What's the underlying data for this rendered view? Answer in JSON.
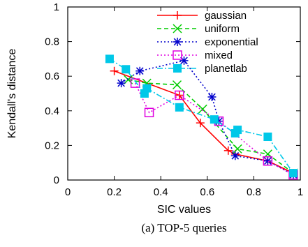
{
  "caption": "(a) TOP-5 queries",
  "chart_data": {
    "type": "line",
    "xlabel": "SIC values",
    "ylabel": "Kendall's distance",
    "xlim": [
      0,
      1
    ],
    "ylim": [
      0,
      1
    ],
    "x_ticks": [
      "0",
      "0.2",
      "0.4",
      "0.6",
      "0.8",
      "1"
    ],
    "y_ticks": [
      "0",
      "0.2",
      "0.4",
      "0.6",
      "0.8",
      "1"
    ],
    "legend_position": "top-right",
    "series": [
      {
        "name": "gaussian",
        "color": "#ff0000",
        "dash": "solid",
        "marker": "plus",
        "points": [
          [
            0.2,
            0.63
          ],
          [
            0.48,
            0.49
          ],
          [
            0.57,
            0.33
          ],
          [
            0.69,
            0.17
          ],
          [
            0.72,
            0.15
          ],
          [
            0.86,
            0.11
          ],
          [
            0.97,
            0.04
          ]
        ]
      },
      {
        "name": "uniform",
        "color": "#00cc00",
        "dash": "dashed",
        "marker": "x",
        "points": [
          [
            0.26,
            0.58
          ],
          [
            0.34,
            0.56
          ],
          [
            0.47,
            0.55
          ],
          [
            0.58,
            0.41
          ],
          [
            0.73,
            0.18
          ],
          [
            0.86,
            0.15
          ],
          [
            0.97,
            0.04
          ]
        ]
      },
      {
        "name": "exponential",
        "color": "#0000cc",
        "dash": "dotted",
        "marker": "asterisk",
        "points": [
          [
            0.23,
            0.56
          ],
          [
            0.31,
            0.63
          ],
          [
            0.5,
            0.69
          ],
          [
            0.62,
            0.48
          ],
          [
            0.65,
            0.34
          ],
          [
            0.72,
            0.14
          ],
          [
            0.86,
            0.11
          ],
          [
            0.97,
            0.03
          ]
        ]
      },
      {
        "name": "mixed",
        "color": "#e000e0",
        "dash": "dotted",
        "marker": "square",
        "points": [
          [
            0.29,
            0.56
          ],
          [
            0.35,
            0.39
          ],
          [
            0.48,
            0.49
          ],
          [
            0.65,
            0.34
          ],
          [
            0.86,
            0.11
          ],
          [
            0.97,
            0.03
          ]
        ]
      },
      {
        "name": "planetlab",
        "color": "#00c8e8",
        "dash": "dashdot",
        "marker": "filled-square",
        "points": [
          [
            0.18,
            0.7
          ],
          [
            0.25,
            0.64
          ],
          [
            0.33,
            0.5
          ],
          [
            0.34,
            0.53
          ],
          [
            0.48,
            0.42
          ],
          [
            0.63,
            0.35
          ],
          [
            0.72,
            0.27
          ],
          [
            0.73,
            0.29
          ],
          [
            0.86,
            0.25
          ],
          [
            0.97,
            0.04
          ]
        ]
      }
    ]
  }
}
